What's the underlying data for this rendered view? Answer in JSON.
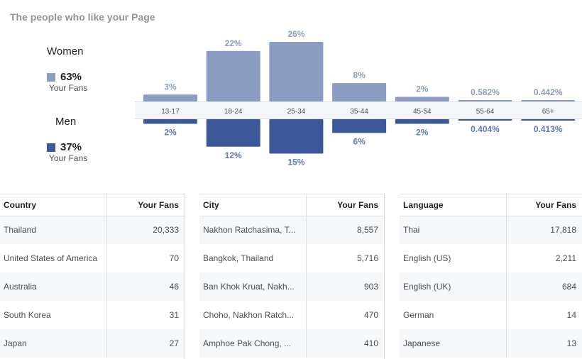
{
  "page_title": "The people who like your Page",
  "legend": {
    "women": {
      "label": "Women",
      "percent": "63%",
      "sub": "Your Fans",
      "color": "#8b9dc3"
    },
    "men": {
      "label": "Men",
      "percent": "37%",
      "sub": "Your Fans",
      "color": "#3b5998"
    }
  },
  "chart_data": {
    "type": "bar",
    "title": "The people who like your Page",
    "categories": [
      "13-17",
      "18-24",
      "25-34",
      "35-44",
      "45-54",
      "55-64",
      "65+"
    ],
    "series": [
      {
        "name": "Women",
        "values": [
          3,
          22,
          26,
          8,
          2,
          0.582,
          0.442
        ],
        "labels": [
          "3%",
          "22%",
          "26%",
          "8%",
          "2%",
          "0.582%",
          "0.442%"
        ],
        "color": "#8b9dc3"
      },
      {
        "name": "Men",
        "values": [
          2,
          12,
          15,
          6,
          2,
          0.404,
          0.413
        ],
        "labels": [
          "2%",
          "12%",
          "15%",
          "6%",
          "2%",
          "0.404%",
          "0.413%"
        ],
        "color": "#3b5998"
      }
    ],
    "ylim": [
      0,
      26
    ]
  },
  "tables": [
    {
      "headers": [
        "Country",
        "Your Fans"
      ],
      "rows": [
        [
          "Thailand",
          "20,333"
        ],
        [
          "United States of America",
          "70"
        ],
        [
          "Australia",
          "46"
        ],
        [
          "South Korea",
          "31"
        ],
        [
          "Japan",
          "27"
        ]
      ]
    },
    {
      "headers": [
        "City",
        "Your Fans"
      ],
      "rows": [
        [
          "Nakhon Ratchasima, T...",
          "8,557"
        ],
        [
          "Bangkok, Thailand",
          "5,716"
        ],
        [
          "Ban Khok Kruat, Nakh...",
          "903"
        ],
        [
          "Choho, Nakhon Ratch...",
          "470"
        ],
        [
          "Amphoe Pak Chong, ...",
          "410"
        ]
      ]
    },
    {
      "headers": [
        "Language",
        "Your Fans"
      ],
      "rows": [
        [
          "Thai",
          "17,818"
        ],
        [
          "English (US)",
          "2,211"
        ],
        [
          "English (UK)",
          "684"
        ],
        [
          "German",
          "14"
        ],
        [
          "Japanese",
          "13"
        ]
      ]
    }
  ]
}
